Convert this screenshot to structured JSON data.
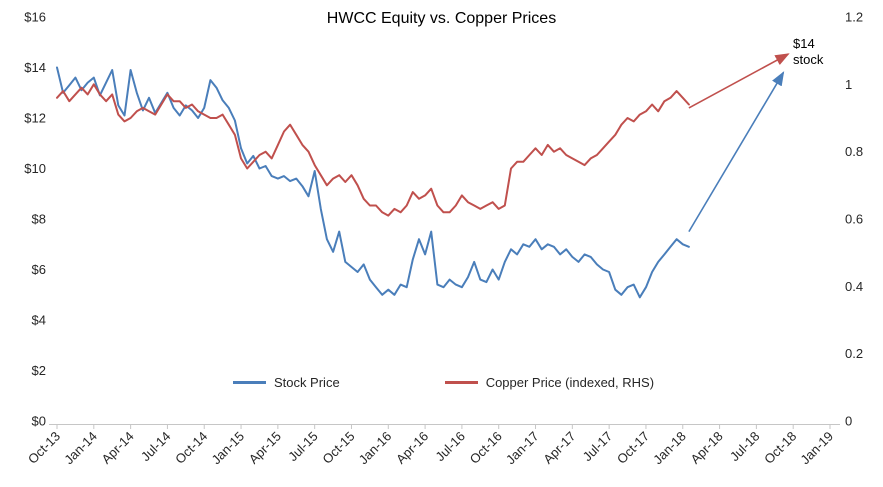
{
  "title": "HWCC Equity vs. Copper Prices",
  "annotation": {
    "line1": "$14",
    "line2": "stock"
  },
  "legend": {
    "stock_label": "Stock Price",
    "copper_label": "Copper Price (indexed, RHS)"
  },
  "chart_data": {
    "type": "line",
    "title": "HWCC Equity vs. Copper Prices",
    "grid": false,
    "legend_position": "bottom-center",
    "axis_color": "#c6c6c6",
    "text_color": "#262626",
    "x_start": "Oct-2013",
    "x_step_months": 0.5,
    "x_axis": {
      "tick_labels": [
        "Oct-13",
        "Jan-14",
        "Apr-14",
        "Jul-14",
        "Oct-14",
        "Jan-15",
        "Apr-15",
        "Jul-15",
        "Oct-15",
        "Jan-16",
        "Apr-16",
        "Jul-16",
        "Oct-16",
        "Jan-17",
        "Apr-17",
        "Jul-17",
        "Oct-17",
        "Jan-18",
        "Apr-18",
        "Jul-18",
        "Oct-18",
        "Jan-19"
      ],
      "months_span": 63,
      "tick_interval_months": 3
    },
    "left_axis": {
      "min": 0,
      "max": 16,
      "tick_labels": [
        "$0",
        "$2",
        "$4",
        "$6",
        "$8",
        "$10",
        "$12",
        "$14",
        "$16"
      ],
      "applies_to": "Stock Price"
    },
    "right_axis": {
      "min": 0,
      "max": 1.2,
      "tick_labels": [
        "0",
        "0.2",
        "0.4",
        "0.6",
        "0.8",
        "1",
        "1.2"
      ],
      "applies_to": "Copper Price (indexed)"
    },
    "series": [
      {
        "name": "Stock Price",
        "axis": "left",
        "color": "#4a7eba",
        "values": [
          14.0,
          13.0,
          13.3,
          13.6,
          13.1,
          13.4,
          13.6,
          12.9,
          13.4,
          13.9,
          12.5,
          12.1,
          13.9,
          13.0,
          12.3,
          12.8,
          12.2,
          12.6,
          13.0,
          12.4,
          12.1,
          12.5,
          12.3,
          12.0,
          12.4,
          13.5,
          13.2,
          12.7,
          12.4,
          11.9,
          10.8,
          10.2,
          10.5,
          10.0,
          10.1,
          9.7,
          9.6,
          9.7,
          9.5,
          9.6,
          9.3,
          8.9,
          9.9,
          8.4,
          7.2,
          6.7,
          7.5,
          6.3,
          6.1,
          5.9,
          6.2,
          5.6,
          5.3,
          5.0,
          5.2,
          5.0,
          5.4,
          5.3,
          6.4,
          7.2,
          6.6,
          7.5,
          5.4,
          5.3,
          5.6,
          5.4,
          5.3,
          5.7,
          6.3,
          5.6,
          5.5,
          6.0,
          5.6,
          6.3,
          6.8,
          6.6,
          7.0,
          6.9,
          7.2,
          6.8,
          7.0,
          6.9,
          6.6,
          6.8,
          6.5,
          6.3,
          6.6,
          6.5,
          6.2,
          6.0,
          5.9,
          5.2,
          5.0,
          5.3,
          5.4,
          4.9,
          5.3,
          5.9,
          6.3,
          6.6,
          6.9,
          7.2,
          7.0,
          6.9
        ]
      },
      {
        "name": "Copper Price (indexed, RHS)",
        "axis": "right",
        "color": "#c0504d",
        "values": [
          0.96,
          0.98,
          0.95,
          0.97,
          0.99,
          0.97,
          1.0,
          0.97,
          0.95,
          0.97,
          0.91,
          0.89,
          0.9,
          0.92,
          0.93,
          0.92,
          0.91,
          0.94,
          0.97,
          0.95,
          0.95,
          0.93,
          0.94,
          0.92,
          0.91,
          0.9,
          0.9,
          0.91,
          0.88,
          0.85,
          0.78,
          0.75,
          0.77,
          0.79,
          0.8,
          0.78,
          0.82,
          0.86,
          0.88,
          0.85,
          0.82,
          0.8,
          0.76,
          0.73,
          0.7,
          0.72,
          0.73,
          0.71,
          0.73,
          0.7,
          0.66,
          0.64,
          0.64,
          0.62,
          0.61,
          0.63,
          0.62,
          0.64,
          0.68,
          0.66,
          0.67,
          0.69,
          0.64,
          0.62,
          0.62,
          0.64,
          0.67,
          0.65,
          0.64,
          0.63,
          0.64,
          0.65,
          0.63,
          0.64,
          0.75,
          0.77,
          0.77,
          0.79,
          0.81,
          0.79,
          0.82,
          0.8,
          0.81,
          0.79,
          0.78,
          0.77,
          0.76,
          0.78,
          0.79,
          0.81,
          0.83,
          0.85,
          0.88,
          0.9,
          0.89,
          0.91,
          0.92,
          0.94,
          0.92,
          0.95,
          0.96,
          0.98,
          0.96,
          0.94
        ]
      }
    ],
    "annotations": [
      {
        "text": "$14 stock",
        "arrows": [
          {
            "series": "Stock Price",
            "axis": "left",
            "from_month": 51.5,
            "from_value": 7.5,
            "to_month": 59.2,
            "to_value": 13.8,
            "color": "#4a7eba"
          },
          {
            "series": "Copper Price (indexed, RHS)",
            "axis": "right",
            "from_month": 51.5,
            "from_value": 0.93,
            "to_month": 59.6,
            "to_value": 1.09,
            "color": "#c0504d"
          }
        ]
      }
    ]
  }
}
